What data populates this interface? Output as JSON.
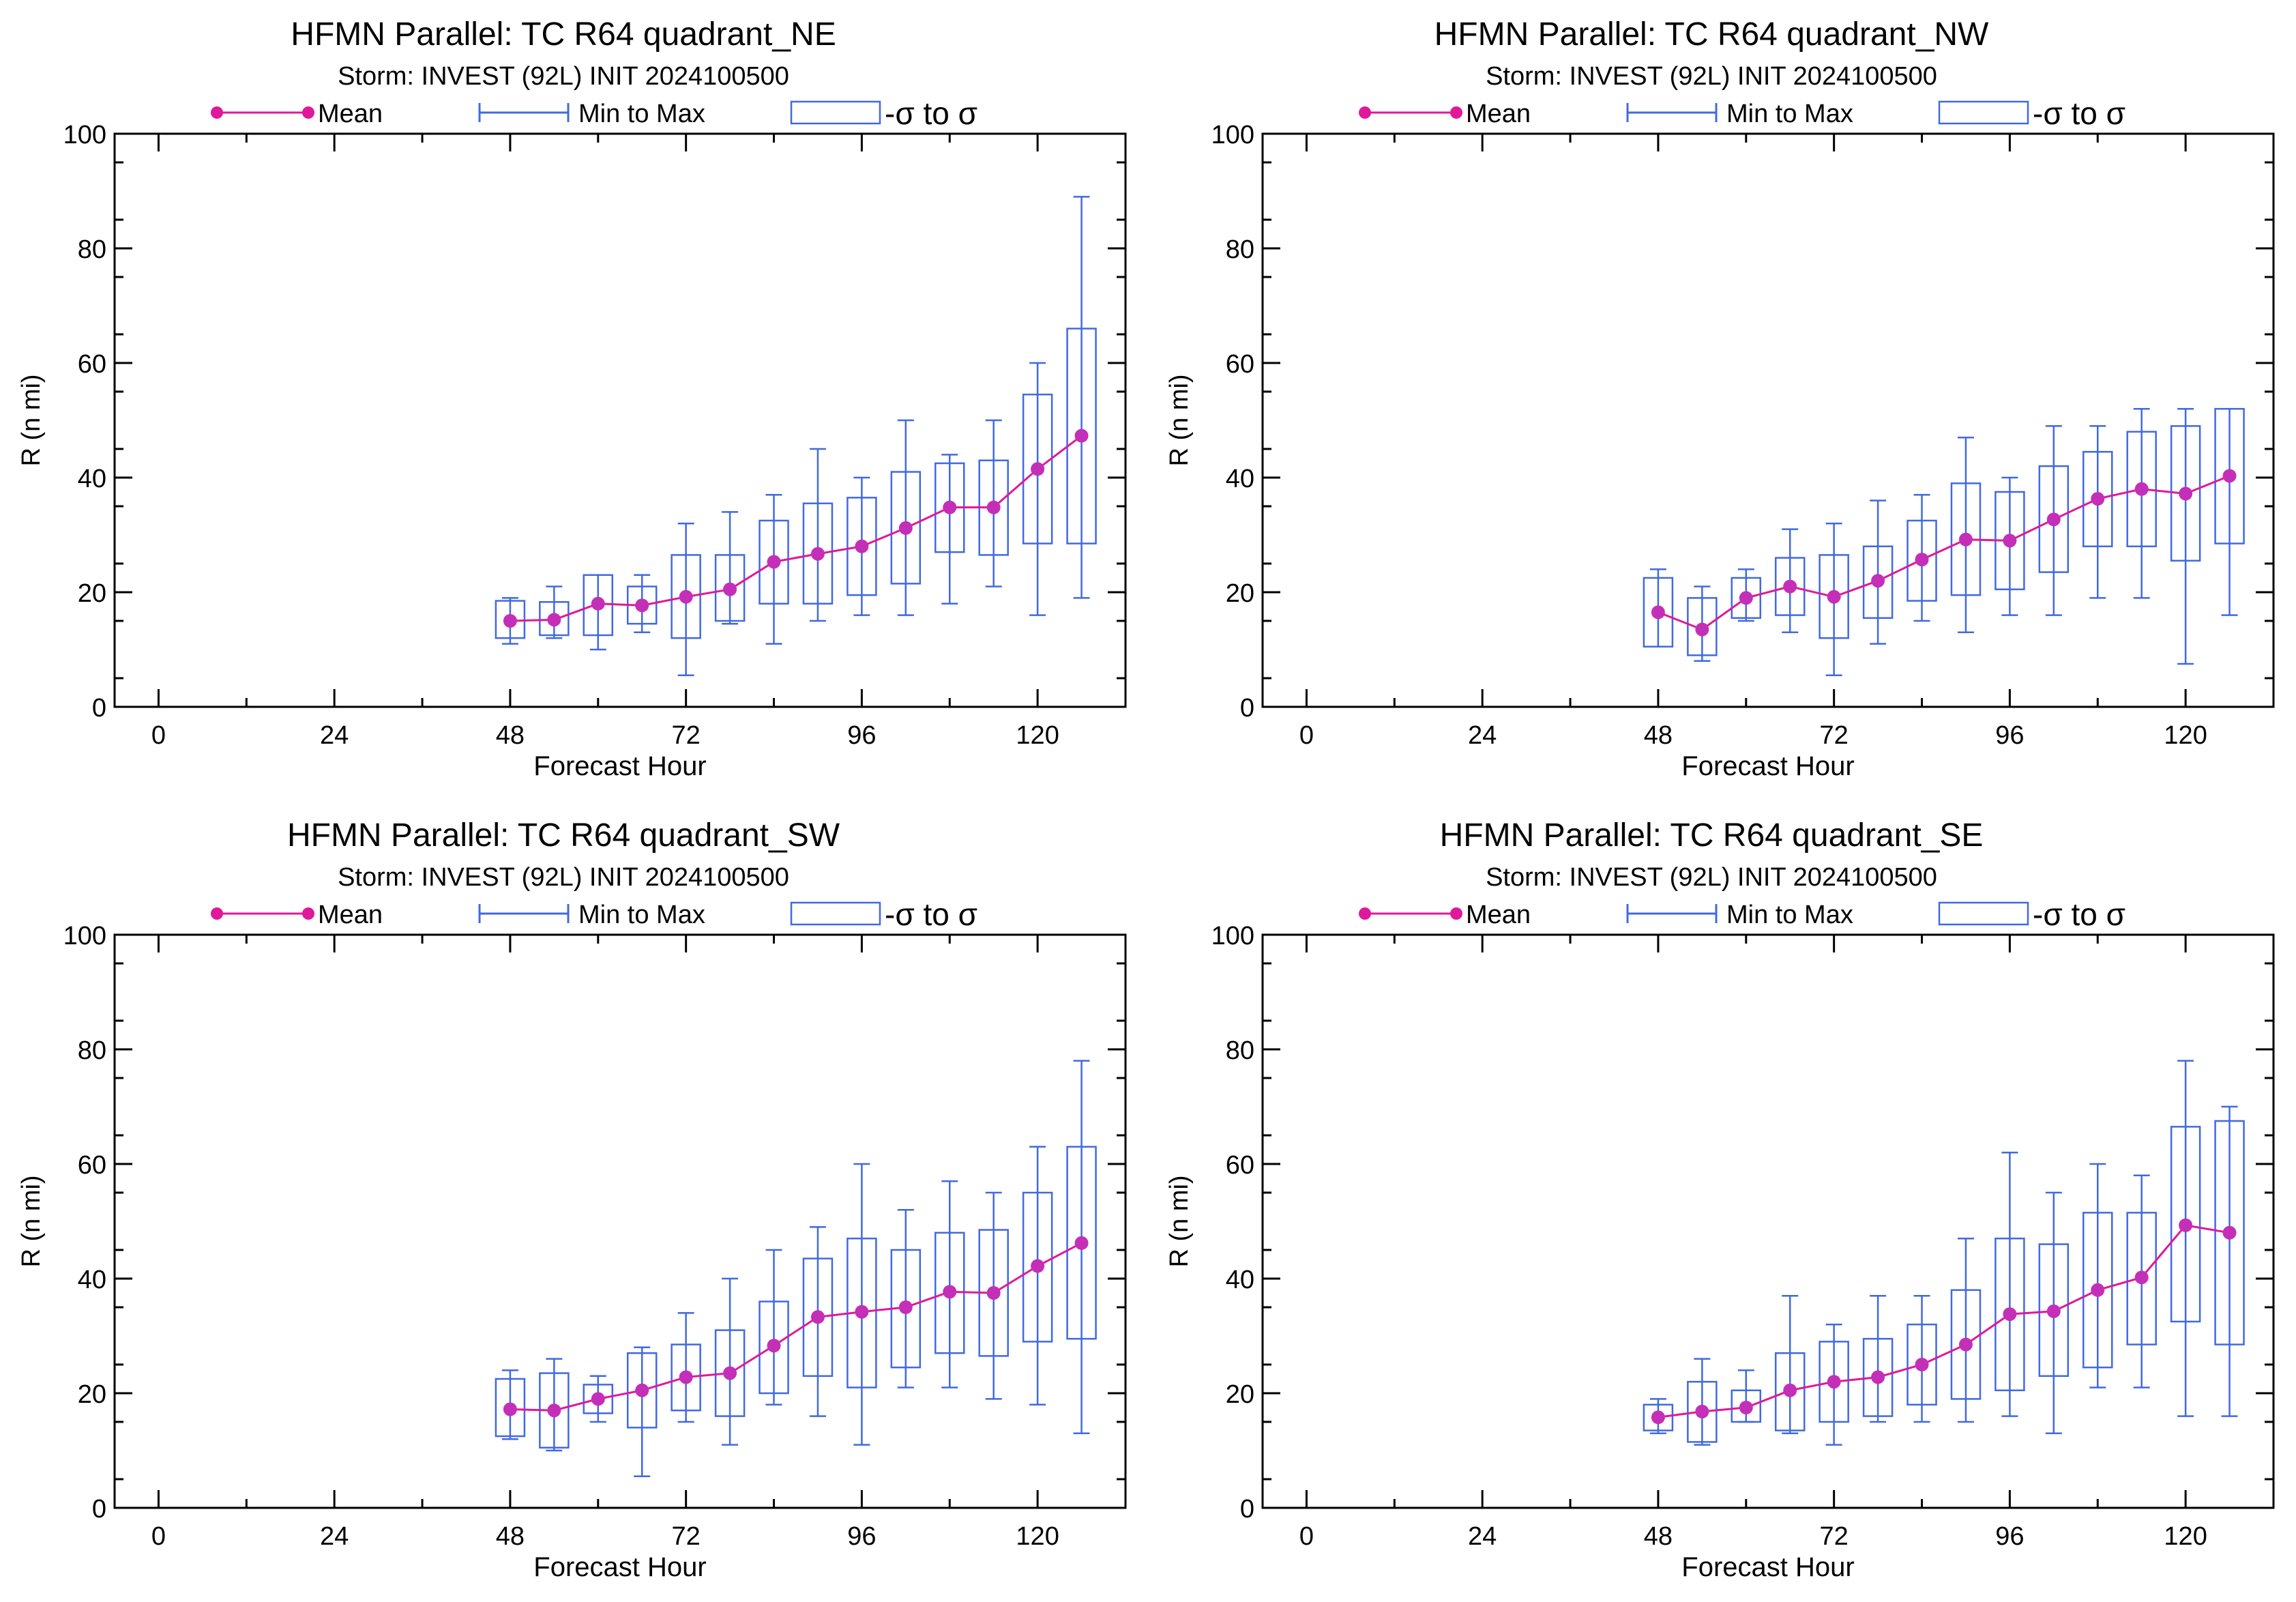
{
  "colors": {
    "mean": "#e0189b",
    "mean_marker": "#c42fb8",
    "range": "#4169e1",
    "axis": "#000000"
  },
  "legend": {
    "mean": "Mean",
    "range": "Min to Max",
    "sigma": "-σ to σ"
  },
  "chart_data": [
    {
      "type": "box",
      "title": "HFMN Parallel: TC  R64 quadrant_NE",
      "subtitle": "Storm: INVEST (92L) INIT 2024100500",
      "xlabel": "Forecast Hour",
      "ylabel": "R (n mi)",
      "xlim": [
        -6,
        132
      ],
      "ylim": [
        0,
        100
      ],
      "xticks": [
        0,
        24,
        48,
        72,
        96,
        120
      ],
      "yticks": [
        0,
        20,
        40,
        60,
        80,
        100
      ],
      "x": [
        48,
        54,
        60,
        66,
        72,
        78,
        84,
        90,
        96,
        102,
        108,
        114,
        120,
        126
      ],
      "mean": [
        15,
        15.2,
        18,
        17.7,
        19.2,
        20.5,
        25.3,
        26.7,
        28,
        31.2,
        34.8,
        34.8,
        41.5,
        47.3
      ],
      "min": [
        11,
        12,
        10,
        13,
        5.5,
        14.5,
        11,
        15,
        16,
        16,
        18,
        21,
        16,
        19
      ],
      "max": [
        19,
        21,
        23,
        23,
        32,
        34,
        37,
        45,
        40,
        50,
        44,
        50,
        60,
        89
      ],
      "sd_low": [
        12,
        12.5,
        12.5,
        14.5,
        12,
        15,
        18,
        18,
        19.5,
        21.5,
        27,
        26.5,
        28.5,
        28.5
      ],
      "sd_high": [
        18.5,
        18.3,
        23,
        21,
        26.5,
        26.5,
        32.5,
        35.5,
        36.5,
        41,
        42.5,
        43,
        54.5,
        66
      ]
    },
    {
      "type": "box",
      "title": "HFMN Parallel: TC  R64 quadrant_NW",
      "subtitle": "Storm: INVEST (92L) INIT 2024100500",
      "xlabel": "Forecast Hour",
      "ylabel": "R (n mi)",
      "xlim": [
        -6,
        132
      ],
      "ylim": [
        0,
        100
      ],
      "xticks": [
        0,
        24,
        48,
        72,
        96,
        120
      ],
      "yticks": [
        0,
        20,
        40,
        60,
        80,
        100
      ],
      "x": [
        48,
        54,
        60,
        66,
        72,
        78,
        84,
        90,
        96,
        102,
        108,
        114,
        120,
        126
      ],
      "mean": [
        16.5,
        13.5,
        19,
        21,
        19.2,
        22,
        25.7,
        29.2,
        29,
        32.7,
        36.3,
        38,
        37.2,
        40.3
      ],
      "min": [
        10.5,
        8,
        15,
        13,
        5.5,
        11,
        15,
        13,
        16,
        16,
        19,
        19,
        7.5,
        16
      ],
      "max": [
        24,
        21,
        24,
        31,
        32,
        36,
        37,
        47,
        40,
        49,
        49,
        52,
        52,
        52
      ],
      "sd_low": [
        10.5,
        9,
        15.5,
        16,
        12,
        15.5,
        18.5,
        19.5,
        20.5,
        23.5,
        28,
        28,
        25.5,
        28.5
      ],
      "sd_high": [
        22.5,
        19,
        22.5,
        26,
        26.5,
        28,
        32.5,
        39,
        37.5,
        42,
        44.5,
        48,
        49,
        52
      ]
    },
    {
      "type": "box",
      "title": "HFMN Parallel: TC  R64 quadrant_SW",
      "subtitle": "Storm: INVEST (92L) INIT 2024100500",
      "xlabel": "Forecast Hour",
      "ylabel": "R (n mi)",
      "xlim": [
        -6,
        132
      ],
      "ylim": [
        0,
        100
      ],
      "xticks": [
        0,
        24,
        48,
        72,
        96,
        120
      ],
      "yticks": [
        0,
        20,
        40,
        60,
        80,
        100
      ],
      "x": [
        48,
        54,
        60,
        66,
        72,
        78,
        84,
        90,
        96,
        102,
        108,
        114,
        120,
        126
      ],
      "mean": [
        17.2,
        17,
        19,
        20.5,
        22.8,
        23.5,
        28.3,
        33.3,
        34.2,
        35,
        37.7,
        37.5,
        42.2,
        46.2
      ],
      "min": [
        12,
        10,
        15,
        5.5,
        15,
        11,
        18,
        16,
        11,
        21,
        21,
        19,
        18,
        13
      ],
      "max": [
        24,
        26,
        23,
        28,
        34,
        40,
        45,
        49,
        60,
        52,
        57,
        55,
        63,
        78
      ],
      "sd_low": [
        12.5,
        10.5,
        16.5,
        14,
        17,
        16,
        20,
        23,
        21,
        24.5,
        27,
        26.5,
        29,
        29.5
      ],
      "sd_high": [
        22.5,
        23.5,
        21.5,
        27,
        28.5,
        31,
        36,
        43.5,
        47,
        45,
        48,
        48.5,
        55,
        63
      ]
    },
    {
      "type": "box",
      "title": "HFMN Parallel: TC  R64 quadrant_SE",
      "subtitle": "Storm: INVEST (92L) INIT 2024100500",
      "xlabel": "Forecast Hour",
      "ylabel": "R (n mi)",
      "xlim": [
        -6,
        132
      ],
      "ylim": [
        0,
        100
      ],
      "xticks": [
        0,
        24,
        48,
        72,
        96,
        120
      ],
      "yticks": [
        0,
        20,
        40,
        60,
        80,
        100
      ],
      "x": [
        48,
        54,
        60,
        66,
        72,
        78,
        84,
        90,
        96,
        102,
        108,
        114,
        120,
        126
      ],
      "mean": [
        15.8,
        16.8,
        17.5,
        20.5,
        22,
        22.8,
        25,
        28.5,
        33.8,
        34.3,
        38,
        40.2,
        49.3,
        48
      ],
      "min": [
        13,
        11,
        15,
        13,
        11,
        15,
        15,
        15,
        16,
        13,
        21,
        21,
        16,
        16
      ],
      "max": [
        19,
        26,
        24,
        37,
        32,
        37,
        37,
        47,
        62,
        55,
        60,
        58,
        78,
        70
      ],
      "sd_low": [
        13.5,
        11.5,
        15,
        13.5,
        15,
        16,
        18,
        19,
        20.5,
        23,
        24.5,
        28.5,
        32.5,
        28.5
      ],
      "sd_high": [
        18,
        22,
        20.5,
        27,
        29,
        29.5,
        32,
        38,
        47,
        46,
        51.5,
        51.5,
        66.5,
        67.5
      ]
    }
  ]
}
